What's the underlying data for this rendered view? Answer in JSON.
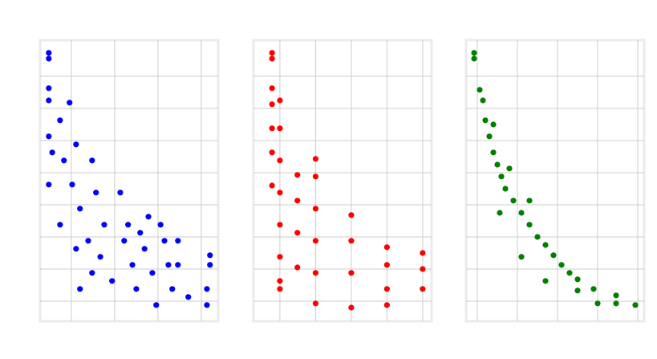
{
  "chart_data": [
    {
      "type": "scatter",
      "color": "#0000ff",
      "grid": true,
      "xlim": [
        0.28,
        4.39
      ],
      "ylim": [
        0.375,
        9.125
      ],
      "xticks": [
        1,
        2,
        3,
        4
      ],
      "yticks": [
        1,
        2,
        3,
        4,
        5,
        6,
        7,
        8
      ],
      "x": [
        0.48,
        0.48,
        0.48,
        0.48,
        0.48,
        0.48,
        0.56,
        0.74,
        0.83,
        0.74,
        0.96,
        1.02,
        1.11,
        1.2,
        1.2,
        1.39,
        1.48,
        1.57,
        1.67,
        1.76,
        1.94,
        2.13,
        2.22,
        2.41,
        2.59,
        2.78,
        2.87,
        2.96,
        3.06,
        3.15,
        3.24,
        3.33,
        3.46,
        3.46,
        3.7,
        4.13,
        4.2,
        4.2,
        4.13,
        1.11,
        1.48,
        2.5,
        2.69,
        2.31
      ],
      "y": [
        8.73,
        8.55,
        7.63,
        7.25,
        6.13,
        4.63,
        5.63,
        6.63,
        5.38,
        3.38,
        7.18,
        4.63,
        5.88,
        3.88,
        1.38,
        2.88,
        5.38,
        4.38,
        2.38,
        3.38,
        1.63,
        4.38,
        2.88,
        2.13,
        3.13,
        3.63,
        1.88,
        0.88,
        3.38,
        2.88,
        2.13,
        1.38,
        2.88,
        2.13,
        1.13,
        0.88,
        2.43,
        2.13,
        1.38,
        2.63,
        1.88,
        1.38,
        2.63,
        3.38
      ]
    },
    {
      "type": "scatter",
      "color": "#ff0000",
      "grid": true,
      "xlim": [
        0.26,
        5.25
      ],
      "ylim": [
        0.375,
        9.125
      ],
      "xticks": [
        1,
        2,
        3,
        4,
        5
      ],
      "yticks": [
        1,
        2,
        3,
        4,
        5,
        6,
        7,
        8
      ],
      "x": [
        0.78,
        0.78,
        0.78,
        0.78,
        0.78,
        0.78,
        0.78,
        1,
        1,
        1,
        1,
        1,
        1,
        1,
        1,
        1.49,
        1.49,
        1.49,
        1.49,
        2,
        2,
        2,
        2,
        2,
        2,
        3,
        3,
        3,
        3,
        4,
        4,
        4,
        4,
        5,
        5,
        5
      ],
      "y": [
        8.73,
        8.55,
        7.63,
        7.13,
        6.38,
        5.63,
        4.6,
        7.25,
        6.38,
        5.38,
        4.38,
        3.38,
        2.38,
        1.63,
        1.38,
        4.93,
        4.13,
        3.13,
        2.05,
        5.43,
        4.88,
        3.88,
        2.88,
        1.88,
        0.93,
        3.68,
        2.88,
        1.88,
        0.8,
        2.68,
        2.13,
        1.38,
        0.88,
        2.5,
        2,
        1.38
      ]
    },
    {
      "type": "scatter",
      "color": "#008000",
      "grid": true,
      "xlim": [
        0.72,
        5.16
      ],
      "ylim": [
        0.375,
        9.125
      ],
      "xticks": [
        1,
        2,
        3,
        4,
        5
      ],
      "yticks": [
        1,
        2,
        3,
        4,
        5,
        6,
        7,
        8
      ],
      "x": [
        0.92,
        0.92,
        1.06,
        1.14,
        1.2,
        1.3,
        1.4,
        1.5,
        1.6,
        1.7,
        1.56,
        1.9,
        2.1,
        2.3,
        2.5,
        2.7,
        2.9,
        3.1,
        3.3,
        3.5,
        3.9,
        4.46,
        4.46,
        4.94,
        2.1,
        2.7,
        3.5,
        4.0,
        1.4,
        1.8,
        2.3
      ],
      "y": [
        8.73,
        8.55,
        7.58,
        7.25,
        6.63,
        6.13,
        5.63,
        5.25,
        4.88,
        4.5,
        3.75,
        4.13,
        3.75,
        3.38,
        3,
        2.75,
        2.43,
        2.13,
        1.88,
        1.68,
        1.38,
        1.18,
        0.93,
        0.88,
        2.38,
        1.63,
        1.33,
        0.93,
        6.5,
        5.13,
        4.13
      ]
    }
  ]
}
